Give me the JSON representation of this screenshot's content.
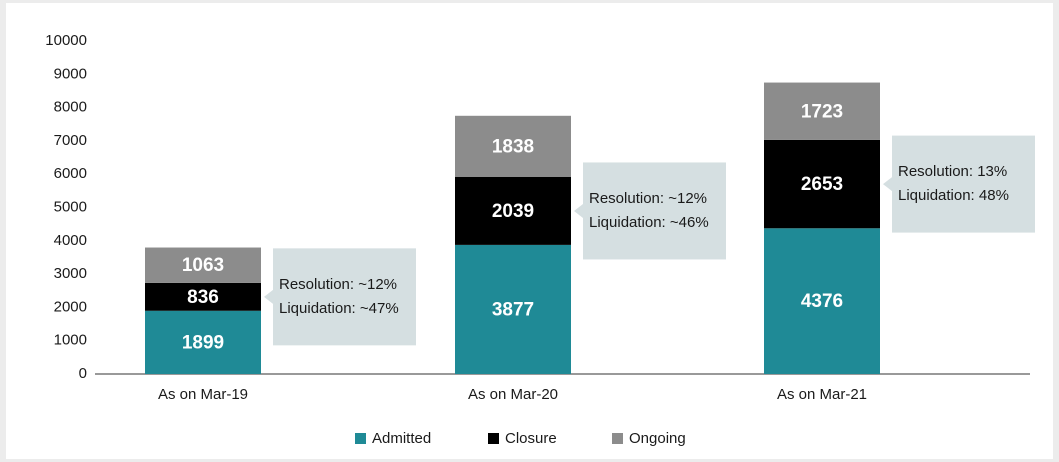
{
  "chart_data": {
    "type": "stacked_bar",
    "categories": [
      "As on Mar-19",
      "As on Mar-20",
      "As on Mar-21"
    ],
    "series": [
      {
        "name": "Admitted",
        "color": "#1f8a96",
        "values": [
          1899,
          3877,
          4376
        ]
      },
      {
        "name": "Closure",
        "color": "#000000",
        "values": [
          836,
          2039,
          2653
        ]
      },
      {
        "name": "Ongoing",
        "color": "#8c8c8c",
        "values": [
          1063,
          1838,
          1723
        ]
      }
    ],
    "annotations": [
      {
        "lines": [
          "Resolution: ~12%",
          "Liquidation: ~47%"
        ]
      },
      {
        "lines": [
          "Resolution: ~12%",
          "Liquidation: ~46%"
        ]
      },
      {
        "lines": [
          "Resolution: 13%",
          "Liquidation: 48%"
        ]
      }
    ],
    "ylim": [
      0,
      10000
    ],
    "yticks": [
      0,
      1000,
      2000,
      3000,
      4000,
      5000,
      6000,
      7000,
      8000,
      9000,
      10000
    ],
    "legend": "bottom"
  }
}
